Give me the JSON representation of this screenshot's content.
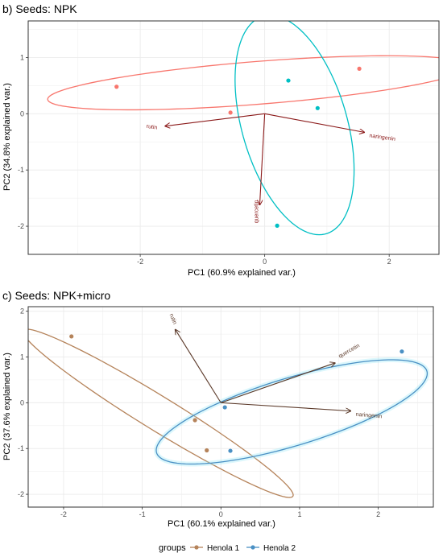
{
  "chart_data": [
    {
      "type": "scatter",
      "title": "b) Seeds: NPK",
      "xlabel": "PC1 (60.9% explained var.)",
      "ylabel": "PC2 (34.8% explained var.)",
      "xlim": [
        -3.8,
        2.8
      ],
      "ylim": [
        -2.5,
        1.65
      ],
      "x_ticks": [
        -2,
        0,
        2
      ],
      "y_ticks": [
        -2,
        -1,
        0,
        1
      ],
      "grid": true,
      "series": [
        {
          "color": "#F8766D",
          "points": [
            [
              -2.38,
              0.48
            ],
            [
              -0.55,
              0.02
            ],
            [
              1.52,
              0.8
            ]
          ],
          "ellipse": {
            "center": [
              -0.1,
              0.55
            ],
            "rx": 3.4,
            "ry": 0.38,
            "angle_deg": 5
          }
        },
        {
          "color": "#00BFC4",
          "points": [
            [
              0.38,
              0.59
            ],
            [
              0.85,
              0.1
            ],
            [
              0.2,
              -1.99
            ]
          ],
          "ellipse": {
            "center": [
              0.48,
              -0.2
            ],
            "rx": 0.85,
            "ry": 2.0,
            "angle_deg": 14
          }
        }
      ],
      "vectors": [
        {
          "label": "rutin",
          "x": -1.6,
          "y": -0.22
        },
        {
          "label": "naringenin",
          "x": 1.6,
          "y": -0.33
        },
        {
          "label": "quercetin",
          "x": -0.08,
          "y": -1.62
        }
      ],
      "vector_color": "#8B1A1A"
    },
    {
      "type": "scatter",
      "title": "c) Seeds: NPK+micro",
      "xlabel": "PC1 (60.1% explained var.)",
      "ylabel": "PC2 (37.6% explained var.)",
      "xlim": [
        -2.45,
        2.7
      ],
      "ylim": [
        -2.28,
        2.1
      ],
      "x_ticks": [
        -2,
        -1,
        0,
        1,
        2
      ],
      "y_ticks": [
        -2,
        -1,
        0,
        1,
        2
      ],
      "grid": true,
      "series": [
        {
          "name": "Henola 1",
          "color": "#B5835A",
          "points": [
            [
              -1.9,
              1.45
            ],
            [
              -0.33,
              -0.38
            ],
            [
              -0.18,
              -1.04
            ]
          ],
          "ellipse": {
            "center": [
              -0.8,
              -0.23
            ],
            "rx": 2.5,
            "ry": 0.3,
            "angle_deg": -47
          }
        },
        {
          "name": "Henola 2",
          "color": "#4A90C4",
          "points": [
            [
              2.3,
              1.12
            ],
            [
              0.05,
              -0.1
            ],
            [
              0.12,
              -1.05
            ]
          ],
          "ellipse": {
            "center": [
              0.9,
              -0.2
            ],
            "rx": 1.95,
            "ry": 0.68,
            "angle_deg": 30
          }
        }
      ],
      "vectors": [
        {
          "label": "rutin",
          "x": -0.58,
          "y": 1.6
        },
        {
          "label": "quercetin",
          "x": 1.45,
          "y": 0.87
        },
        {
          "label": "naringenin",
          "x": 1.65,
          "y": -0.18
        }
      ],
      "vector_color": "#5C3A2A"
    }
  ],
  "legend": {
    "title": "groups",
    "items": [
      {
        "label": "Henola 1",
        "color": "#B5835A"
      },
      {
        "label": "Henola 2",
        "color": "#4A90C4"
      }
    ]
  }
}
